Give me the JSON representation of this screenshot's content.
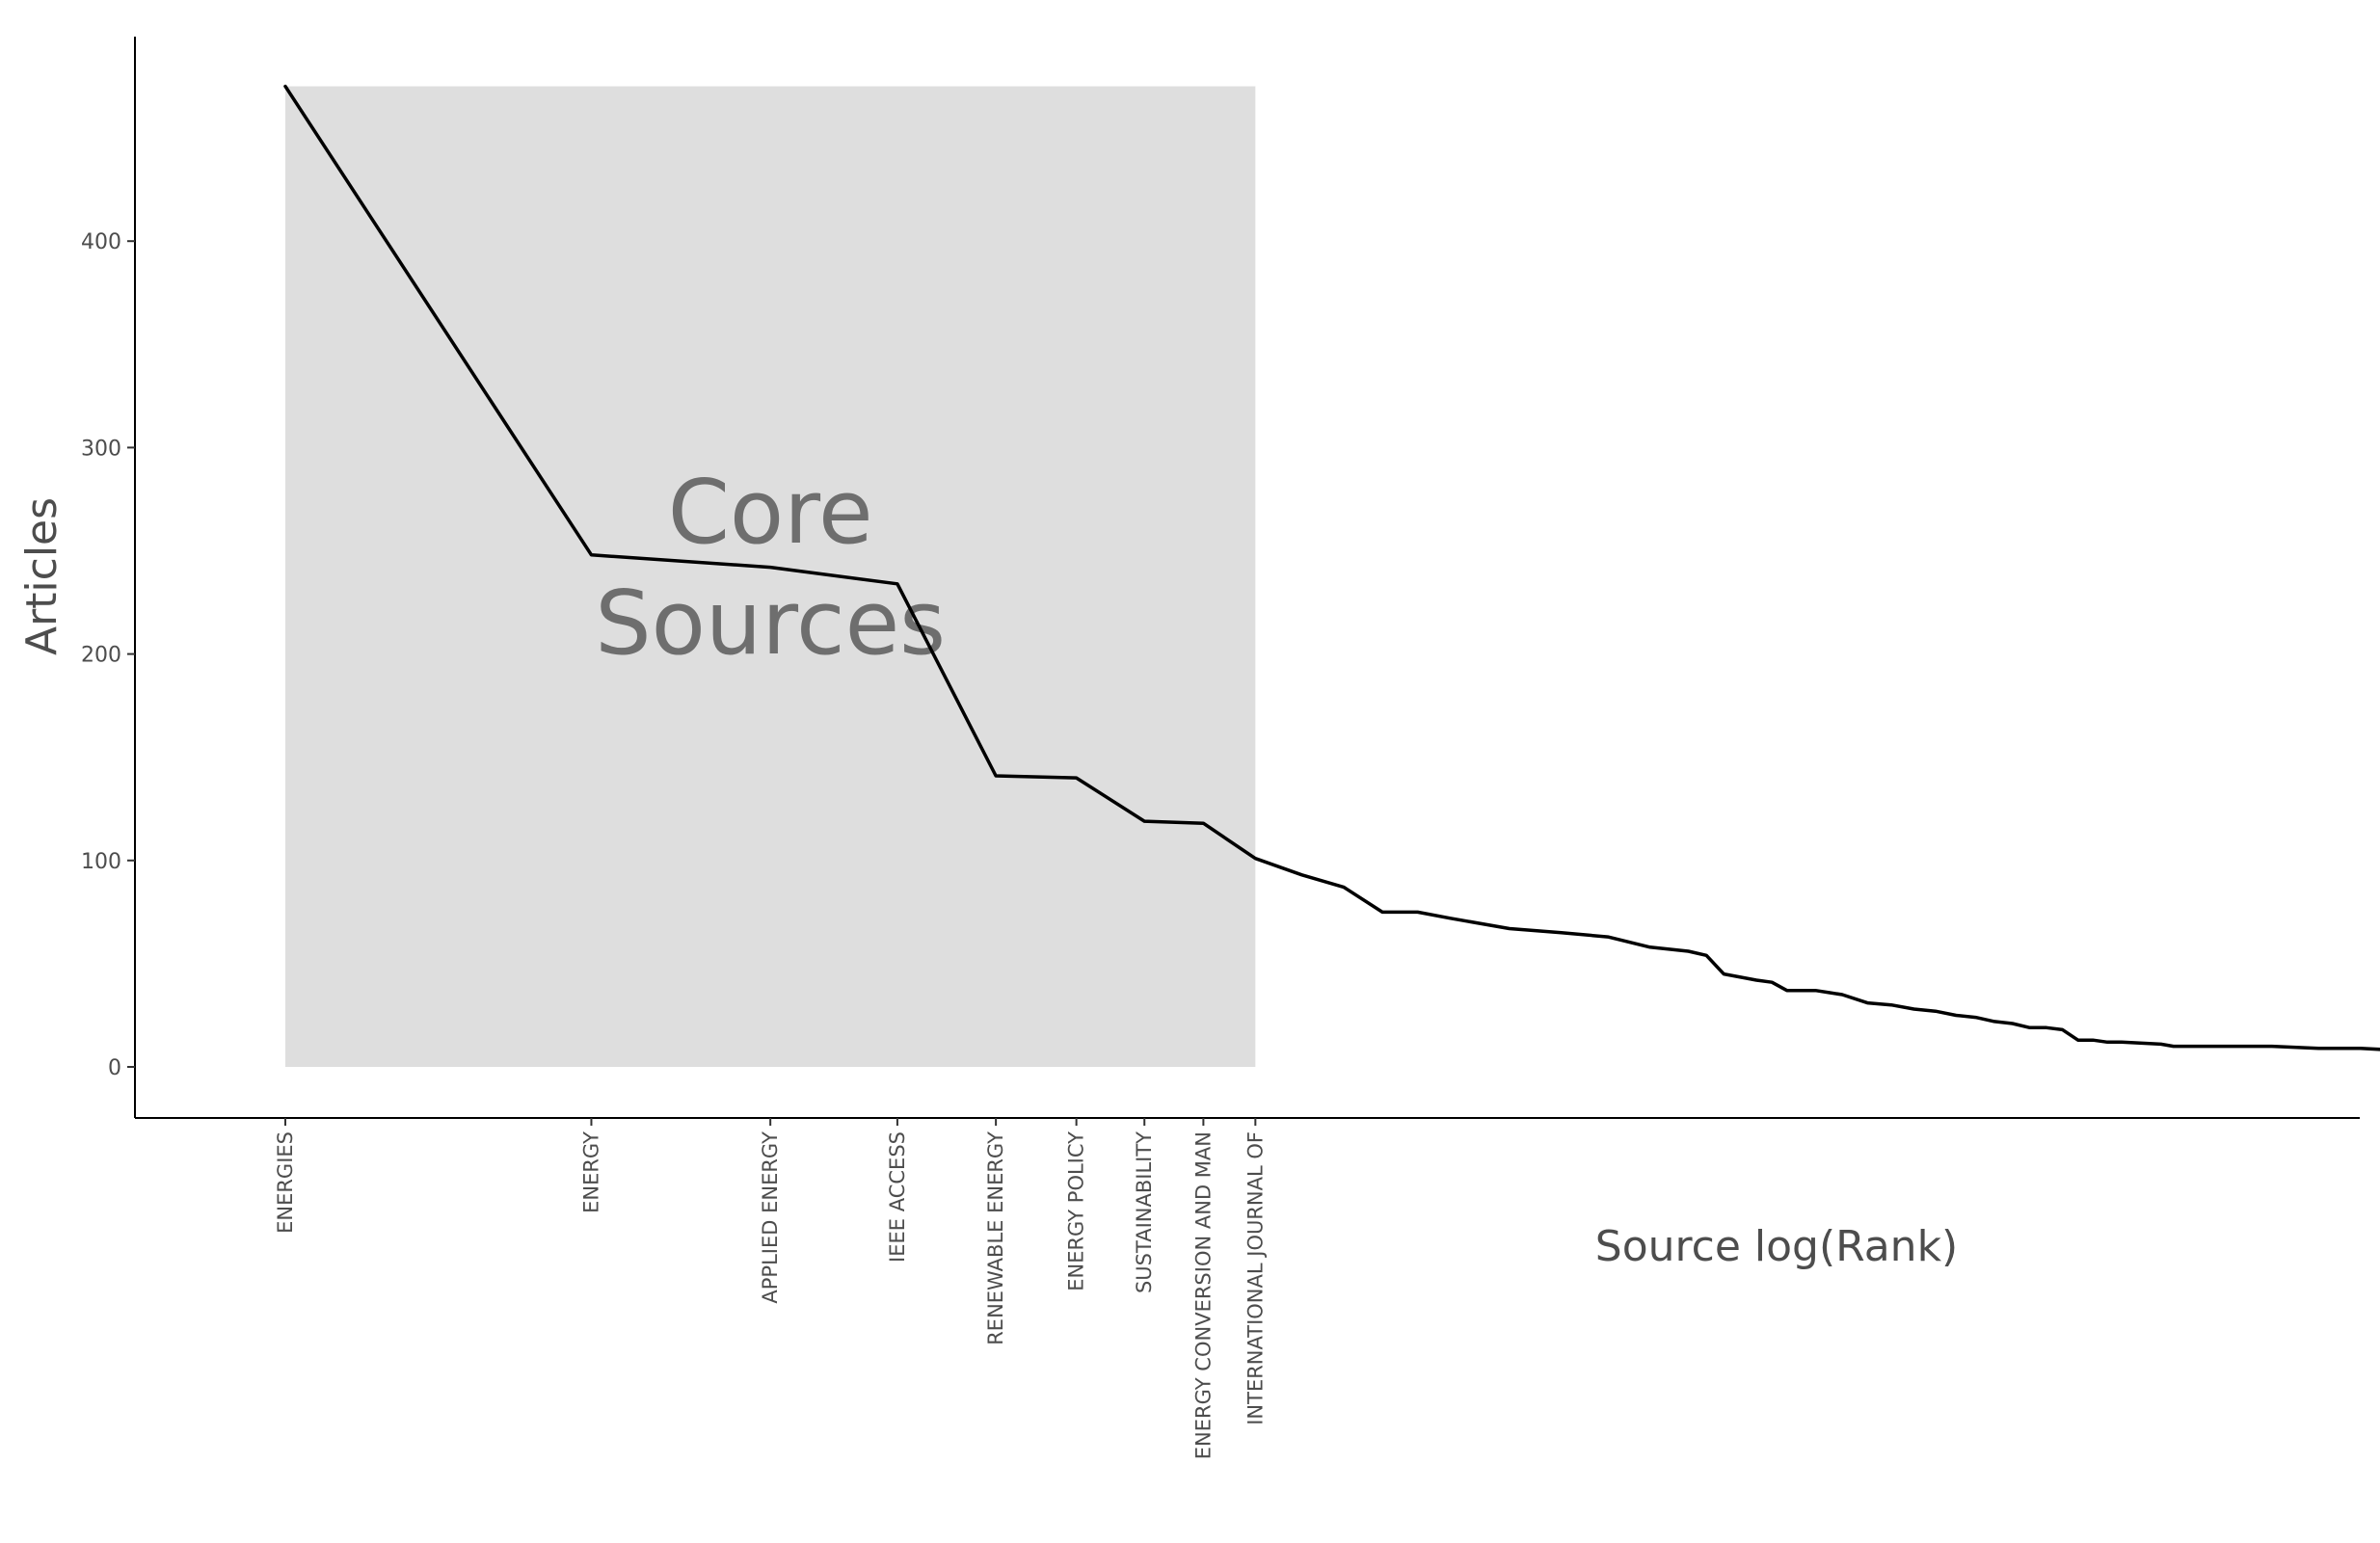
{
  "chart_data": {
    "type": "line",
    "xlabel": "Source log(Rank)",
    "ylabel": "Articles",
    "x_scale": "log",
    "x_range_rank": [
      1,
      160
    ],
    "ylim": [
      -24,
      500
    ],
    "y_ticks": [
      0,
      100,
      200,
      300,
      400
    ],
    "grid": false,
    "legend": "none",
    "line_color": "#000000",
    "core_region": {
      "rank_range": [
        1,
        9
      ],
      "articles_range": [
        0,
        475
      ],
      "fill": "#dedede",
      "label_lines": [
        "Core",
        "Sources"
      ]
    },
    "labeled_sources": [
      {
        "rank": 1,
        "name": "ENERGIES",
        "articles": 475
      },
      {
        "rank": 2,
        "name": "ENERGY",
        "articles": 248
      },
      {
        "rank": 3,
        "name": "APPLIED ENERGY",
        "articles": 242
      },
      {
        "rank": 4,
        "name": "IEEE ACCESS",
        "articles": 234
      },
      {
        "rank": 5,
        "name": "RENEWABLE ENERGY",
        "articles": 141
      },
      {
        "rank": 6,
        "name": "ENERGY POLICY",
        "articles": 140
      },
      {
        "rank": 7,
        "name": "SUSTAINABILITY",
        "articles": 119
      },
      {
        "rank": 8,
        "name": "ENERGY CONVERSION AND MAN",
        "articles": 118
      },
      {
        "rank": 9,
        "name": "INTERNATIONAL JOURNAL OF",
        "articles": 101
      }
    ],
    "series": [
      {
        "x": [
          1,
          2,
          3,
          4,
          5,
          6,
          7,
          8,
          9,
          10,
          11,
          12,
          13,
          14,
          16,
          18,
          20,
          22,
          24,
          25,
          26,
          28,
          29,
          30,
          32,
          33,
          34,
          36,
          38,
          40,
          42,
          44,
          46,
          48,
          50,
          52,
          54,
          56,
          58,
          60,
          62,
          64,
          70,
          72,
          80,
          90,
          100,
          110,
          120,
          130,
          140,
          150,
          160
        ],
        "values": [
          475,
          248,
          242,
          234,
          141,
          140,
          119,
          118,
          101,
          93,
          87,
          75,
          75,
          72,
          67,
          65,
          63,
          58,
          56,
          54,
          45,
          42,
          41,
          37,
          37,
          36,
          35,
          31,
          30,
          28,
          27,
          25,
          24,
          22,
          21,
          19,
          19,
          18,
          13,
          13,
          12,
          12,
          11,
          10,
          10,
          10,
          9,
          9,
          8,
          8,
          7,
          7,
          6
        ]
      }
    ]
  }
}
